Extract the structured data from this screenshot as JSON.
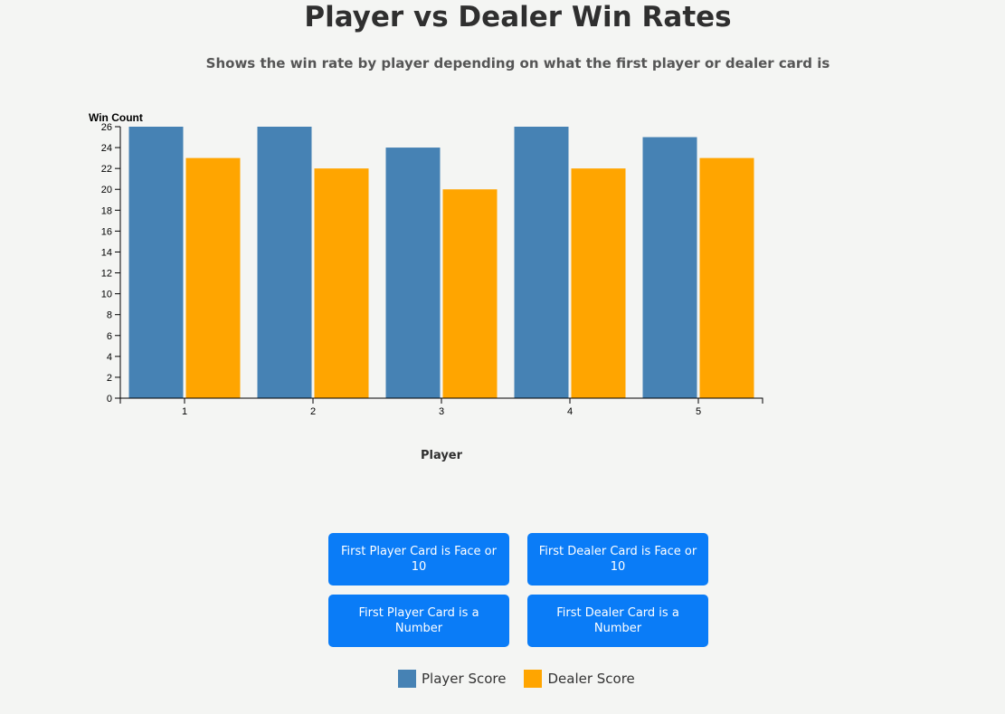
{
  "title": "Player vs Dealer Win Rates",
  "subtitle": "Shows the win rate by player depending on what the first player or dealer card is",
  "buttons": {
    "player_face": "First Player Card is Face or 10",
    "dealer_face": "First Dealer Card is Face or 10",
    "player_number": "First Player Card is a Number",
    "dealer_number": "First Dealer Card is a Number"
  },
  "legend": [
    {
      "label": "Player Score",
      "color": "#4682b4"
    },
    {
      "label": "Dealer Score",
      "color": "#ffa500"
    }
  ],
  "chart_data": {
    "type": "bar",
    "categories": [
      "1",
      "2",
      "3",
      "4",
      "5"
    ],
    "series": [
      {
        "name": "Player Score",
        "values": [
          26,
          26,
          24,
          26,
          25
        ],
        "color": "#4682b4"
      },
      {
        "name": "Dealer Score",
        "values": [
          23,
          22,
          20,
          22,
          23
        ],
        "color": "#ffa500"
      }
    ],
    "xlabel": "Player",
    "ylabel": "Win Count",
    "ylim": [
      0,
      26
    ],
    "yticks": [
      0,
      2,
      4,
      6,
      8,
      10,
      12,
      14,
      16,
      18,
      20,
      22,
      24,
      26
    ],
    "grid": false,
    "legend_position": "bottom"
  }
}
